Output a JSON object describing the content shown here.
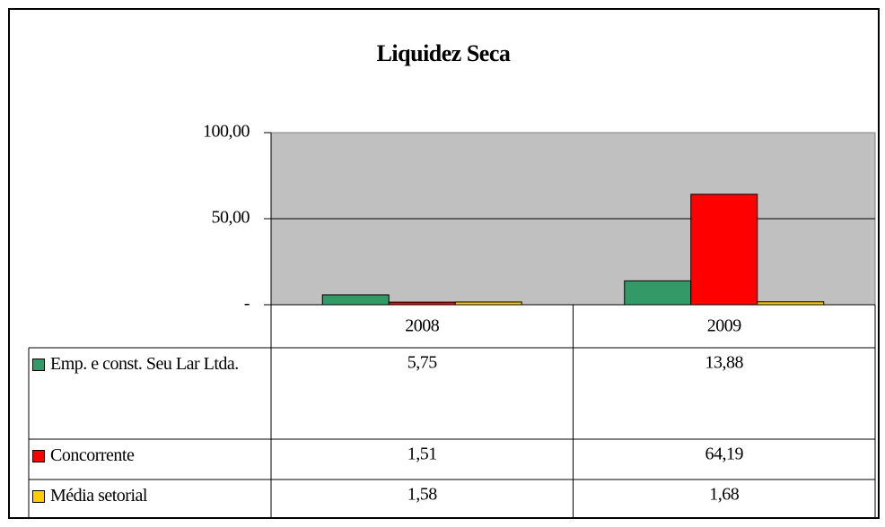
{
  "chart_data": {
    "type": "bar",
    "title": "Liquidez Seca",
    "categories": [
      "2008",
      "2009"
    ],
    "series": [
      {
        "name": "Emp. e const. Seu Lar Ltda.",
        "color": "#339966",
        "values": [
          5.75,
          13.88
        ],
        "value_labels": [
          "5,75",
          "13,88"
        ]
      },
      {
        "name": "Concorrente",
        "color": "#ff0000",
        "values": [
          1.51,
          64.19
        ],
        "value_labels": [
          "1,51",
          "64,19"
        ]
      },
      {
        "name": "Média setorial",
        "color": "#ffcc00",
        "values": [
          1.58,
          1.68
        ],
        "value_labels": [
          "1,58",
          "1,68"
        ]
      }
    ],
    "ylim": [
      0,
      100
    ],
    "yticks": [
      {
        "value": 0,
        "label": "-"
      },
      {
        "value": 50,
        "label": "50,00"
      },
      {
        "value": 100,
        "label": "100,00"
      }
    ],
    "grid": true
  }
}
